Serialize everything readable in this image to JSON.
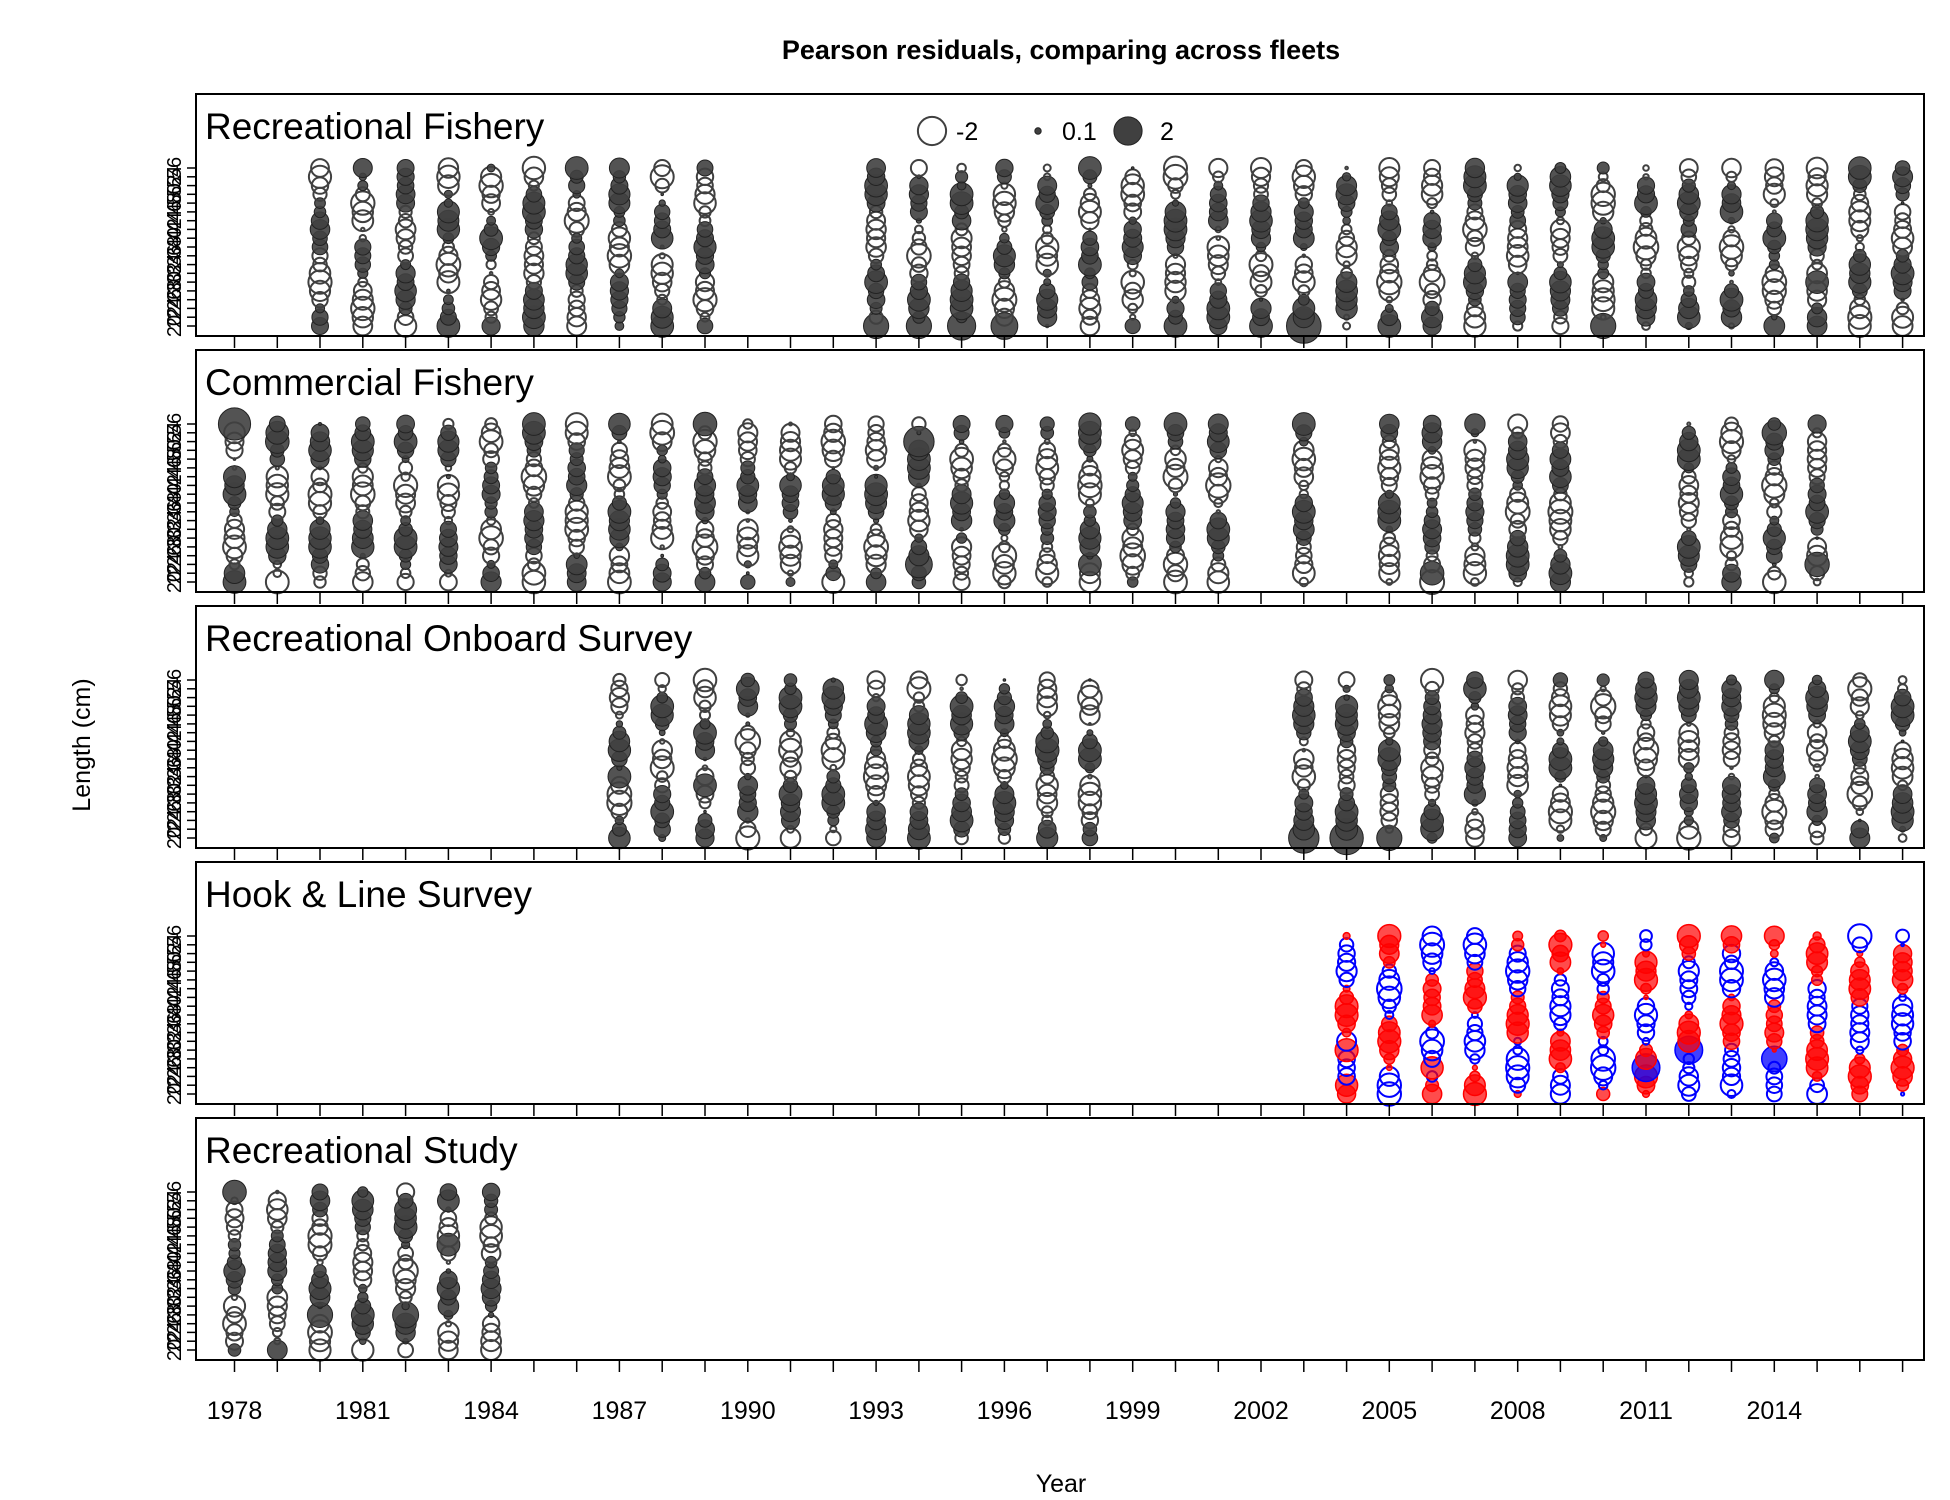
{
  "chart_data": {
    "type": "scatter",
    "title": "Pearson residuals,  comparing across fleets",
    "xlabel": "Year",
    "ylabel": "Length (cm)",
    "x_ticks": [
      1978,
      1981,
      1984,
      1987,
      1990,
      1993,
      1996,
      1999,
      2002,
      2005,
      2008,
      2011,
      2014
    ],
    "y_ticks": [
      20,
      22,
      24,
      26,
      28,
      30,
      32,
      34,
      36,
      38,
      40,
      42,
      44,
      46,
      48,
      50,
      52,
      54,
      56
    ],
    "xlim": [
      1977.1,
      2017.5
    ],
    "ylim": [
      20,
      56
    ],
    "grid": false,
    "legend": {
      "placement": "top-center",
      "entries": [
        {
          "label": "-2",
          "value": -2
        },
        {
          "label": "0.1",
          "value": 0.1
        },
        {
          "label": "2",
          "value": 2
        }
      ]
    },
    "colors": {
      "positive": "#404040",
      "negative_edge": "#404040",
      "survey_positive": "#ff0000",
      "survey_negative_edge": "#0000ff"
    },
    "panels": [
      {
        "name": "Recreational Fishery",
        "years": [
          1980,
          1981,
          1982,
          1983,
          1984,
          1985,
          1986,
          1987,
          1988,
          1989,
          1993,
          1994,
          1995,
          1996,
          1997,
          1998,
          1999,
          2000,
          2001,
          2002,
          2003,
          2004,
          2005,
          2006,
          2007,
          2008,
          2009,
          2010,
          2011,
          2012,
          2013,
          2014,
          2015,
          2016,
          2017
        ],
        "highlights": [
          {
            "year": 1981,
            "length": 56,
            "residual": 0.9
          },
          {
            "year": 1987,
            "length": 56,
            "residual": 1.0
          },
          {
            "year": 1987,
            "length": 48,
            "residual": 1.1
          },
          {
            "year": 1993,
            "length": 20,
            "residual": 1.6
          },
          {
            "year": 1994,
            "length": 20,
            "residual": 1.6
          },
          {
            "year": 1995,
            "length": 20,
            "residual": 2.0
          },
          {
            "year": 1996,
            "length": 20,
            "residual": 1.8
          },
          {
            "year": 2003,
            "length": 20,
            "residual": 3.0
          },
          {
            "year": 2003,
            "length": 24,
            "residual": 1.2
          },
          {
            "year": 2010,
            "length": 20,
            "residual": 1.6
          },
          {
            "year": 2015,
            "length": 30,
            "residual": 1.3
          }
        ]
      },
      {
        "name": "Commercial Fishery",
        "years": [
          1978,
          1979,
          1980,
          1981,
          1982,
          1983,
          1984,
          1985,
          1986,
          1987,
          1988,
          1989,
          1990,
          1991,
          1992,
          1993,
          1994,
          1995,
          1996,
          1997,
          1998,
          1999,
          2000,
          2001,
          2003,
          2005,
          2006,
          2007,
          2008,
          2009,
          2012,
          2013,
          2014,
          2015
        ],
        "highlights": [
          {
            "year": 1978,
            "length": 56,
            "residual": 2.6
          },
          {
            "year": 1979,
            "length": 52,
            "residual": 1.4
          },
          {
            "year": 1989,
            "length": 56,
            "residual": 1.4
          },
          {
            "year": 1994,
            "length": 52,
            "residual": 2.3
          },
          {
            "year": 1994,
            "length": 24,
            "residual": 1.8
          },
          {
            "year": 1992,
            "length": 20,
            "residual": -1.2
          },
          {
            "year": 2006,
            "length": 22,
            "residual": 1.4
          },
          {
            "year": 2014,
            "length": 54,
            "residual": 1.5
          },
          {
            "year": 2015,
            "length": 24,
            "residual": 1.5
          },
          {
            "year": 1998,
            "length": 24,
            "residual": 1.3
          }
        ]
      },
      {
        "name": "Recreational Onboard Survey",
        "years": [
          1987,
          1988,
          1989,
          1990,
          1991,
          1992,
          1993,
          1994,
          1995,
          1996,
          1997,
          1998,
          2003,
          2004,
          2005,
          2006,
          2007,
          2008,
          2009,
          2010,
          2011,
          2012,
          2013,
          2014,
          2015,
          2016,
          2017
        ],
        "highlights": [
          {
            "year": 2003,
            "length": 20,
            "residual": 2.3
          },
          {
            "year": 2004,
            "length": 20,
            "residual": 2.8
          },
          {
            "year": 2005,
            "length": 20,
            "residual": 1.6
          },
          {
            "year": 1987,
            "length": 34,
            "residual": 1.3
          },
          {
            "year": 1989,
            "length": 32,
            "residual": 1.3
          },
          {
            "year": 1997,
            "length": 40,
            "residual": 1.4
          },
          {
            "year": 1998,
            "length": 38,
            "residual": 1.3
          }
        ]
      },
      {
        "name": "Hook & Line Survey",
        "years": [
          2004,
          2005,
          2006,
          2007,
          2008,
          2009,
          2010,
          2011,
          2012,
          2013,
          2014,
          2015,
          2016,
          2017
        ],
        "highlights": [
          {
            "year": 2011,
            "length": 26,
            "residual": 1.9
          },
          {
            "year": 2012,
            "length": 30,
            "residual": 1.9
          },
          {
            "year": 2014,
            "length": 28,
            "residual": 1.6
          },
          {
            "year": 2004,
            "length": 22,
            "residual": 1.2
          },
          {
            "year": 2006,
            "length": 26,
            "residual": 1.2
          },
          {
            "year": 2004,
            "length": 30,
            "residual": 1.3
          }
        ]
      },
      {
        "name": "Recreational Study",
        "years": [
          1978,
          1979,
          1980,
          1981,
          1982,
          1983,
          1984
        ],
        "highlights": [
          {
            "year": 1978,
            "length": 56,
            "residual": 1.4
          },
          {
            "year": 1980,
            "length": 28,
            "residual": 1.6
          },
          {
            "year": 1982,
            "length": 28,
            "residual": 1.7
          },
          {
            "year": 1983,
            "length": 44,
            "residual": 1.3
          }
        ]
      }
    ]
  }
}
